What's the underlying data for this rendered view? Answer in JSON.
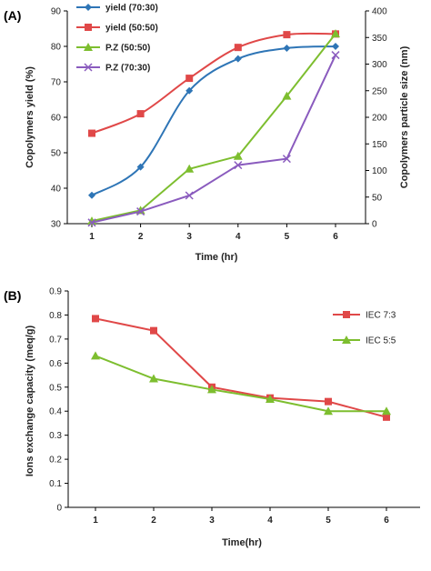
{
  "chart_data": [
    {
      "panel_label": "(A)",
      "type": "line",
      "x": [
        1,
        2,
        3,
        4,
        5,
        6
      ],
      "xlabel": "Time (hr)",
      "ylabel": "Copolymers yield (%)",
      "y2label": "Copolymers particle size (nm)",
      "ylim": [
        30,
        90
      ],
      "yticks": [
        30,
        40,
        50,
        60,
        70,
        80,
        90
      ],
      "y2lim": [
        0,
        400
      ],
      "y2ticks": [
        0,
        50,
        100,
        150,
        200,
        250,
        300,
        350,
        400
      ],
      "grid": false,
      "legend_position": "top-left",
      "series": [
        {
          "name": "yield (70:30)",
          "axis": "left",
          "color": "#2E75B6",
          "marker": "diamond",
          "smooth": true,
          "values": [
            38,
            46,
            67.5,
            76.5,
            79.5,
            80
          ]
        },
        {
          "name": "yield (50:50)",
          "axis": "left",
          "color": "#E04848",
          "marker": "square",
          "smooth": true,
          "values": [
            55.5,
            61,
            71,
            79.7,
            83.3,
            83.5
          ]
        },
        {
          "name": "P.Z (50:50)",
          "axis": "right",
          "color": "#7DBE2F",
          "marker": "triangle",
          "smooth": false,
          "values": [
            5,
            25,
            103,
            127,
            240,
            357
          ]
        },
        {
          "name": "P.Z (70:30)",
          "axis": "right",
          "color": "#8A5BBE",
          "marker": "x",
          "smooth": false,
          "values": [
            2,
            23,
            53,
            110,
            122,
            317
          ]
        }
      ]
    },
    {
      "panel_label": "(B)",
      "type": "line",
      "x": [
        1,
        2,
        3,
        4,
        5,
        6
      ],
      "xlabel": "Time(hr)",
      "ylabel": "Ions exchange capacity (meq/g)",
      "ylim": [
        0,
        0.9
      ],
      "yticks": [
        "0",
        "0.1",
        "0.2",
        "0.3",
        "0.4",
        "0.5",
        "0.6",
        "0.7",
        "0.8",
        "0.9"
      ],
      "grid": false,
      "legend_position": "top-right",
      "series": [
        {
          "name": "IEC 7:3",
          "color": "#E04848",
          "marker": "square",
          "values": [
            0.785,
            0.735,
            0.5,
            0.455,
            0.44,
            0.375
          ]
        },
        {
          "name": "IEC 5:5",
          "color": "#7DBE2F",
          "marker": "triangle",
          "values": [
            0.63,
            0.535,
            0.49,
            0.45,
            0.4,
            0.4
          ]
        }
      ]
    }
  ]
}
